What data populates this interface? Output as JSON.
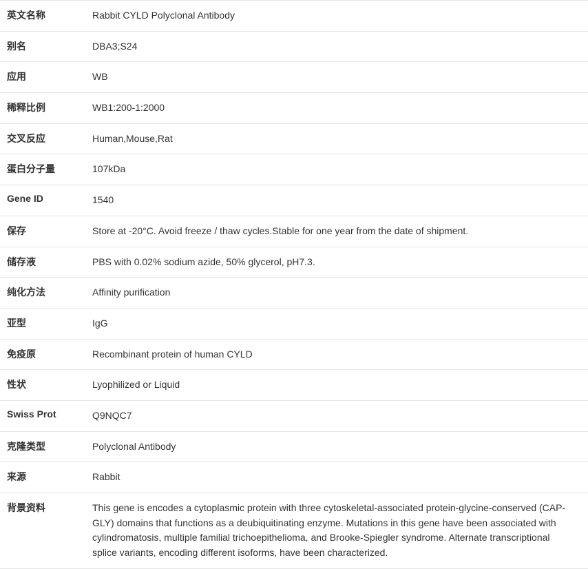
{
  "table": {
    "border_color": "#e5e5e5",
    "label_color": "#333333",
    "value_color": "#333333",
    "font_size": 14,
    "rows": [
      {
        "label": "英文名称",
        "value": "Rabbit CYLD Polyclonal Antibody"
      },
      {
        "label": "别名",
        "value": "DBA3;S24"
      },
      {
        "label": "应用",
        "value": "WB"
      },
      {
        "label": "稀释比例",
        "value": "WB1:200-1:2000"
      },
      {
        "label": "交叉反应",
        "value": "Human,Mouse,Rat"
      },
      {
        "label": "蛋白分子量",
        "value": "107kDa"
      },
      {
        "label": "Gene ID",
        "value": "1540"
      },
      {
        "label": "保存",
        "value": "Store at -20°C. Avoid freeze / thaw cycles.Stable for one year from the date of shipment."
      },
      {
        "label": "储存液",
        "value": "PBS with 0.02% sodium azide, 50% glycerol, pH7.3."
      },
      {
        "label": "纯化方法",
        "value": "Affinity purification"
      },
      {
        "label": "亚型",
        "value": "IgG"
      },
      {
        "label": "免疫原",
        "value": "Recombinant protein of human CYLD"
      },
      {
        "label": "性状",
        "value": "Lyophilized or Liquid"
      },
      {
        "label": "Swiss Prot",
        "value": "Q9NQC7"
      },
      {
        "label": "克隆类型",
        "value": "Polyclonal Antibody"
      },
      {
        "label": "来源",
        "value": "Rabbit"
      },
      {
        "label": "背景资料",
        "value": "This gene is encodes a cytoplasmic protein with three cytoskeletal-associated protein-glycine-conserved (CAP-GLY) domains that functions as a deubiquitinating enzyme. Mutations in this gene have been associated with cylindromatosis, multiple familial trichoepithelioma, and Brooke-Spiegler syndrome. Alternate transcriptional splice variants, encoding different isoforms, have been characterized."
      }
    ]
  }
}
